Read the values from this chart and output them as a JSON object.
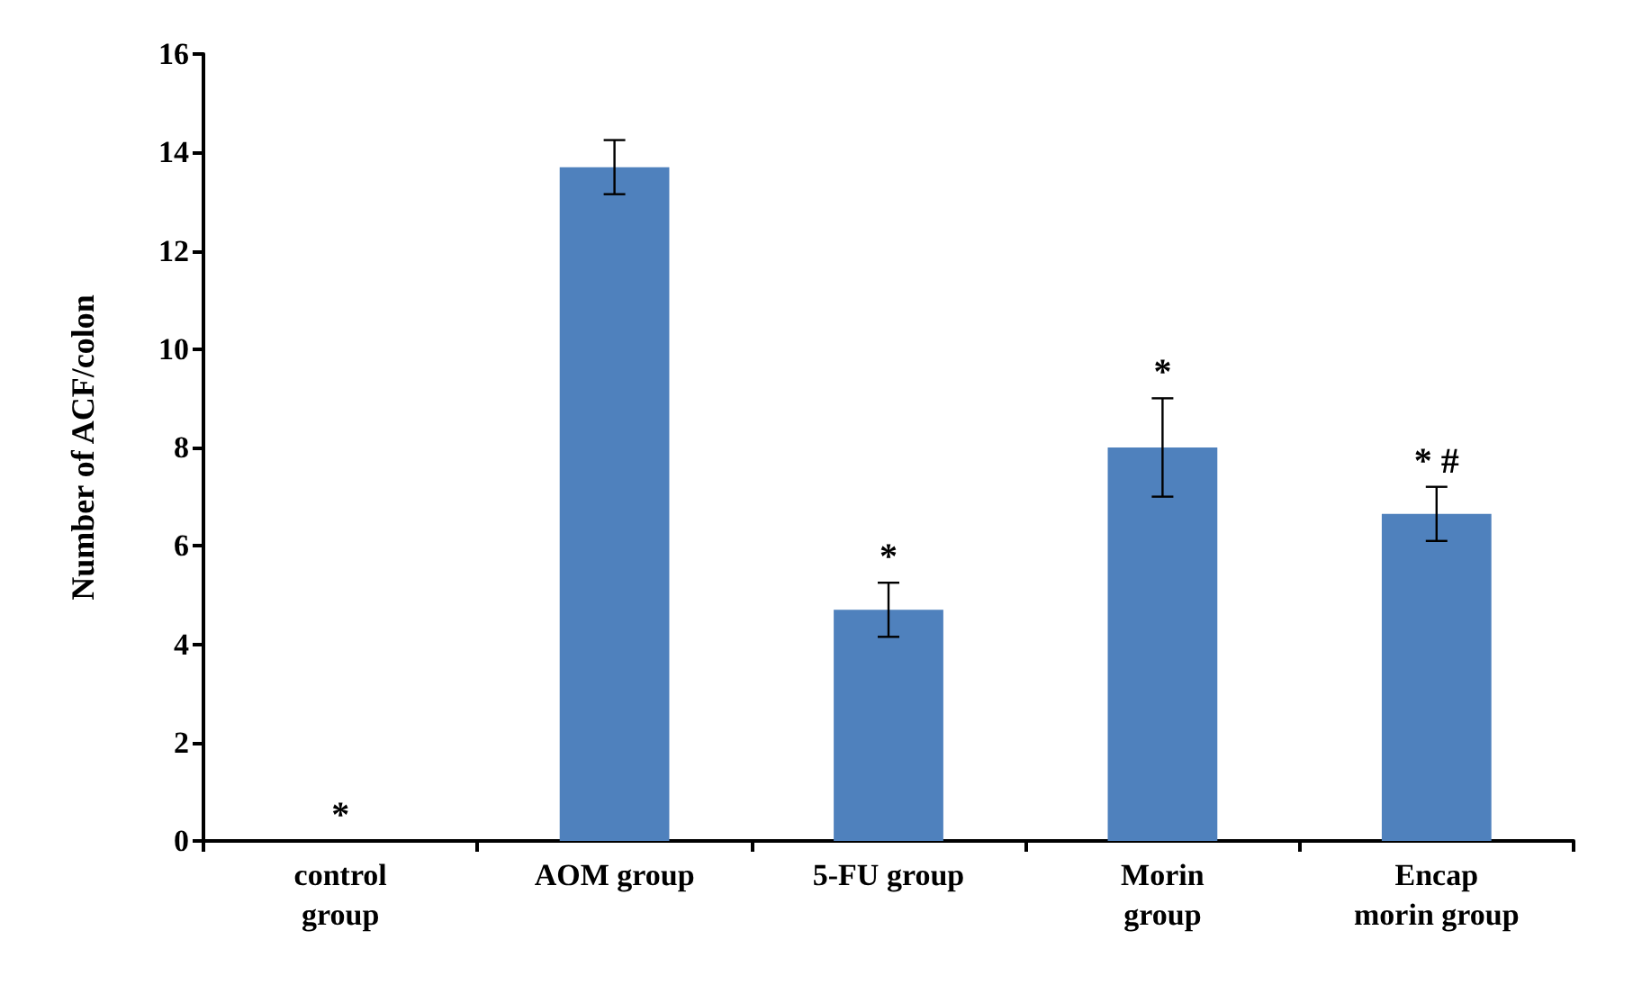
{
  "chart_data": {
    "type": "bar",
    "ylabel": "Number of ACF/colon",
    "categories": [
      "control\ngroup",
      "AOM group",
      "5-FU group",
      "Morin\ngroup",
      "Encap\nmorin group"
    ],
    "values": [
      0,
      13.7,
      4.7,
      8.0,
      6.65
    ],
    "errors": [
      null,
      0.55,
      0.55,
      1.0,
      0.55
    ],
    "color": "#4f81bd",
    "value_labels": [
      "*",
      null,
      "*",
      "*",
      "* #"
    ],
    "ylim": [
      0,
      16
    ],
    "yticks": [
      0,
      2,
      4,
      6,
      8,
      10,
      12,
      14,
      16
    ],
    "grid": false
  }
}
